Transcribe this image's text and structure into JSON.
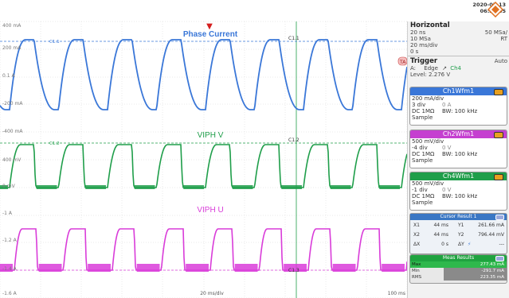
{
  "timestamp": {
    "date": "2020-05-13",
    "time": "06:36:55"
  },
  "waveform_titles": {
    "ch1": "Phase Current",
    "ch2": "VIPH V",
    "ch3": "VIPH U"
  },
  "left_axis_labels": [
    "400 mA",
    "200 mA",
    "0.1 A",
    "-200 mA",
    "-400 mA",
    "400 mV",
    "0 mV",
    "-1 A",
    "-1.2 A",
    "-1.4 A",
    "-1.6 A"
  ],
  "markers": {
    "c1_1": "C1.1",
    "c1_2": "C1.2",
    "c1_3": "C1.3",
    "trigger_arrow": "▼",
    "channel_tag": "TA"
  },
  "time_labels": {
    "center": "20 ms/div",
    "right": "100 ms"
  },
  "colors": {
    "ch1": "#3a77d8",
    "ch2": "#1f9e4a",
    "ch3": "#d93cd9",
    "grid": "#d0d0d0",
    "trigger": "#d41e1e"
  },
  "horizontal": {
    "title": "Horizontal",
    "rows": [
      {
        "left": "20 ns",
        "right": "50 MSa/"
      },
      {
        "left": "10 MSa",
        "right": "RT"
      },
      {
        "left": "20 ms/div",
        "right": ""
      },
      {
        "left": "0 s",
        "right": ""
      }
    ]
  },
  "trigger": {
    "title": "Trigger",
    "mode": "Auto",
    "source_label": "A:",
    "edge_label": "Edge",
    "channel": "Ch4",
    "level": "Level: 2.276 V"
  },
  "ch1wfm": {
    "title": "Ch1Wfm1",
    "color": "#3a77d8",
    "scale": "200 mA/div",
    "pos": "3 div",
    "offset": "0 A",
    "coupling": "DC 1MΩ",
    "bw": "BW: 100 kHz",
    "mode": "Sample"
  },
  "ch2wfm": {
    "title": "Ch2Wfm1",
    "color": "#c53fd0",
    "scale": "500 mV/div",
    "pos": "-4 div",
    "offset": "0 V",
    "coupling": "DC 1MΩ",
    "bw": "BW: 100 kHz",
    "mode": "Sample"
  },
  "ch4wfm": {
    "title": "Ch4Wfm1",
    "color": "#1f9e4a",
    "scale": "500 mV/div",
    "pos": "-1 div",
    "offset": "0 V",
    "coupling": "DC 1MΩ",
    "bw": "BW: 100 kHz",
    "mode": "Sample"
  },
  "cursor": {
    "title": "Cursor Result 1",
    "x1_label": "X1",
    "x1": "44 ms",
    "y1_label": "Y1",
    "y1": "261.66 mA",
    "x2_label": "X2",
    "x2": "44 ms",
    "y2_label": "Y2",
    "y2": "796.44 mV",
    "dx_label": "ΔX",
    "dx": "0 s",
    "dy_label": "ΔY",
    "dy": "---"
  },
  "meas": {
    "title": "Meas Results",
    "rows": [
      {
        "label": "Max",
        "value": "277.43 mA"
      },
      {
        "label": "Min",
        "value": "-291.7 mA"
      },
      {
        "label": "RMS",
        "value": "223.35 mA"
      }
    ]
  }
}
